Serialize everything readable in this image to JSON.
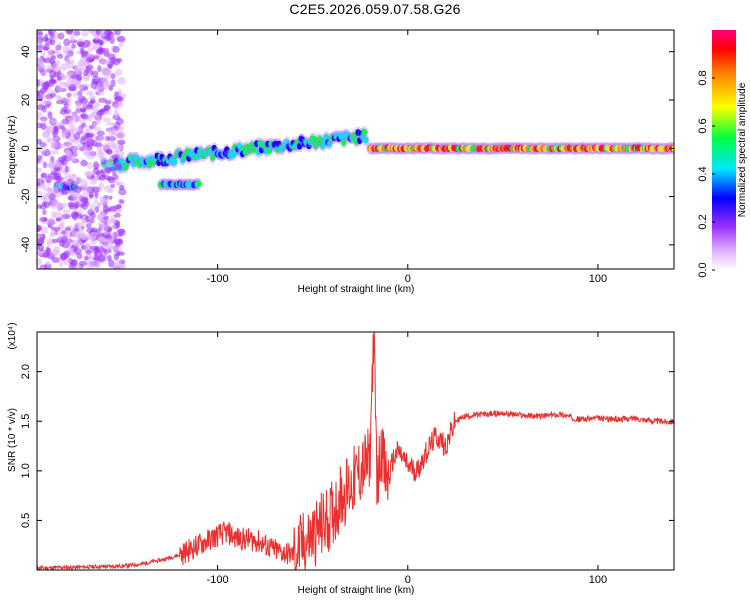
{
  "title": "C2E5.2026.059.07.58.G26",
  "colors": {
    "snr_line": "#e8312f",
    "frame": "#000000"
  },
  "chart_data": [
    {
      "type": "heatmap",
      "name": "spectrogram",
      "xlabel": "Height of straight line (km)",
      "ylabel": "Frequency (Hz)",
      "xlim": [
        -195,
        140
      ],
      "ylim": [
        -50,
        49
      ],
      "x_ticks": [
        "-100",
        "0",
        "100"
      ],
      "x_tick_values": [
        -100,
        0,
        100
      ],
      "y_ticks": [
        "40",
        "20",
        "0",
        "-20",
        "-40"
      ],
      "y_tick_values": [
        40,
        20,
        0,
        -20,
        -40
      ],
      "colorbar": {
        "label": "Normalized spectral amplitude",
        "range": [
          0,
          1
        ],
        "ticks": [
          "0.0",
          "0.2",
          "0.4",
          "0.6",
          "0.8"
        ],
        "tick_values": [
          0,
          0.2,
          0.4,
          0.6,
          0.8
        ],
        "colormap": [
          "#ffffff",
          "#e0b0ff",
          "#9b30ff",
          "#0000ff",
          "#00e5ff",
          "#00ff40",
          "#ffff00",
          "#ff8000",
          "#ff0000"
        ]
      },
      "features": [
        {
          "description": "strong tone",
          "x_range": [
            -20,
            140
          ],
          "frequency_hz": 0,
          "amplitude": 0.9
        },
        {
          "description": "rising tone",
          "x_range": [
            -160,
            -22
          ],
          "frequency_hz_start": -7,
          "frequency_hz_end": 5,
          "amplitude": 0.55
        },
        {
          "description": "weak tone",
          "x_range": [
            -185,
            -175
          ],
          "frequency_hz": -16,
          "amplitude": 0.5
        },
        {
          "description": "weak tone",
          "x_range": [
            -130,
            -110
          ],
          "frequency_hz": -15,
          "amplitude": 0.5
        },
        {
          "description": "noise",
          "x_range": [
            -195,
            -150
          ],
          "frequency_range": [
            -50,
            49
          ],
          "amplitude": 0.15
        }
      ]
    },
    {
      "type": "line",
      "name": "snr",
      "xlabel": "Height of straight line (km)",
      "ylabel": "SNR (10 * v/v)",
      "scale_label": "(x10⁴)",
      "xlim": [
        -195,
        140
      ],
      "ylim": [
        0,
        2.4
      ],
      "x_ticks": [
        "-100",
        "0",
        "100"
      ],
      "x_tick_values": [
        -100,
        0,
        100
      ],
      "y_ticks": [
        "2.0",
        "1.5",
        "1.0",
        "0.5"
      ],
      "y_tick_values": [
        2.0,
        1.5,
        1.0,
        0.5
      ],
      "series": [
        {
          "name": "SNR",
          "x": [
            -195,
            -170,
            -150,
            -140,
            -130,
            -120,
            -110,
            -100,
            -95,
            -90,
            -80,
            -70,
            -60,
            -50,
            -40,
            -35,
            -30,
            -25,
            -20,
            -18,
            -16,
            -14,
            -12,
            -10,
            -8,
            -5,
            0,
            5,
            10,
            15,
            20,
            25,
            30,
            40,
            50,
            60,
            70,
            80,
            90,
            100,
            110,
            120,
            130,
            140
          ],
          "y": [
            0.02,
            0.03,
            0.04,
            0.06,
            0.1,
            0.15,
            0.25,
            0.35,
            0.38,
            0.32,
            0.3,
            0.2,
            0.15,
            0.35,
            0.55,
            0.75,
            0.85,
            1.0,
            1.1,
            2.4,
            0.8,
            1.3,
            0.95,
            0.9,
            1.1,
            1.2,
            1.05,
            1.0,
            1.2,
            1.35,
            1.25,
            1.5,
            1.55,
            1.57,
            1.58,
            1.56,
            1.55,
            1.57,
            1.52,
            1.53,
            1.52,
            1.53,
            1.5,
            1.5
          ],
          "noise": "high-frequency fluctuations, larger between -60 and -10 km"
        }
      ]
    }
  ]
}
